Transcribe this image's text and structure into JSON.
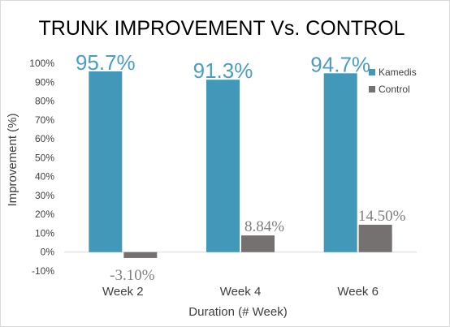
{
  "chart_data": {
    "type": "bar",
    "title": "TRUNK IMPROVEMENT Vs. CONTROL",
    "xlabel": "Duration (# Week)",
    "ylabel": "Improvement (%)",
    "ylim": [
      -10,
      100
    ],
    "yticks": [
      "-10%",
      "0%",
      "10%",
      "20%",
      "30%",
      "40%",
      "50%",
      "60%",
      "70%",
      "80%",
      "90%",
      "100%"
    ],
    "categories": [
      "Week 2",
      "Week 4",
      "Week 6"
    ],
    "legend_position": "top-right",
    "grid": false,
    "series": [
      {
        "name": "Kamedis",
        "color": "#4198b8",
        "label_color": "#4a9ec4",
        "values": [
          95.7,
          91.3,
          94.7
        ],
        "labels": [
          "95.7%",
          "91.3%",
          "94.7%"
        ]
      },
      {
        "name": "Control",
        "color": "#767171",
        "label_color": "#7f7f7f",
        "values": [
          -3.1,
          8.84,
          14.5
        ],
        "labels": [
          "-3.10%",
          "8.84%",
          "14.50%"
        ]
      }
    ]
  }
}
